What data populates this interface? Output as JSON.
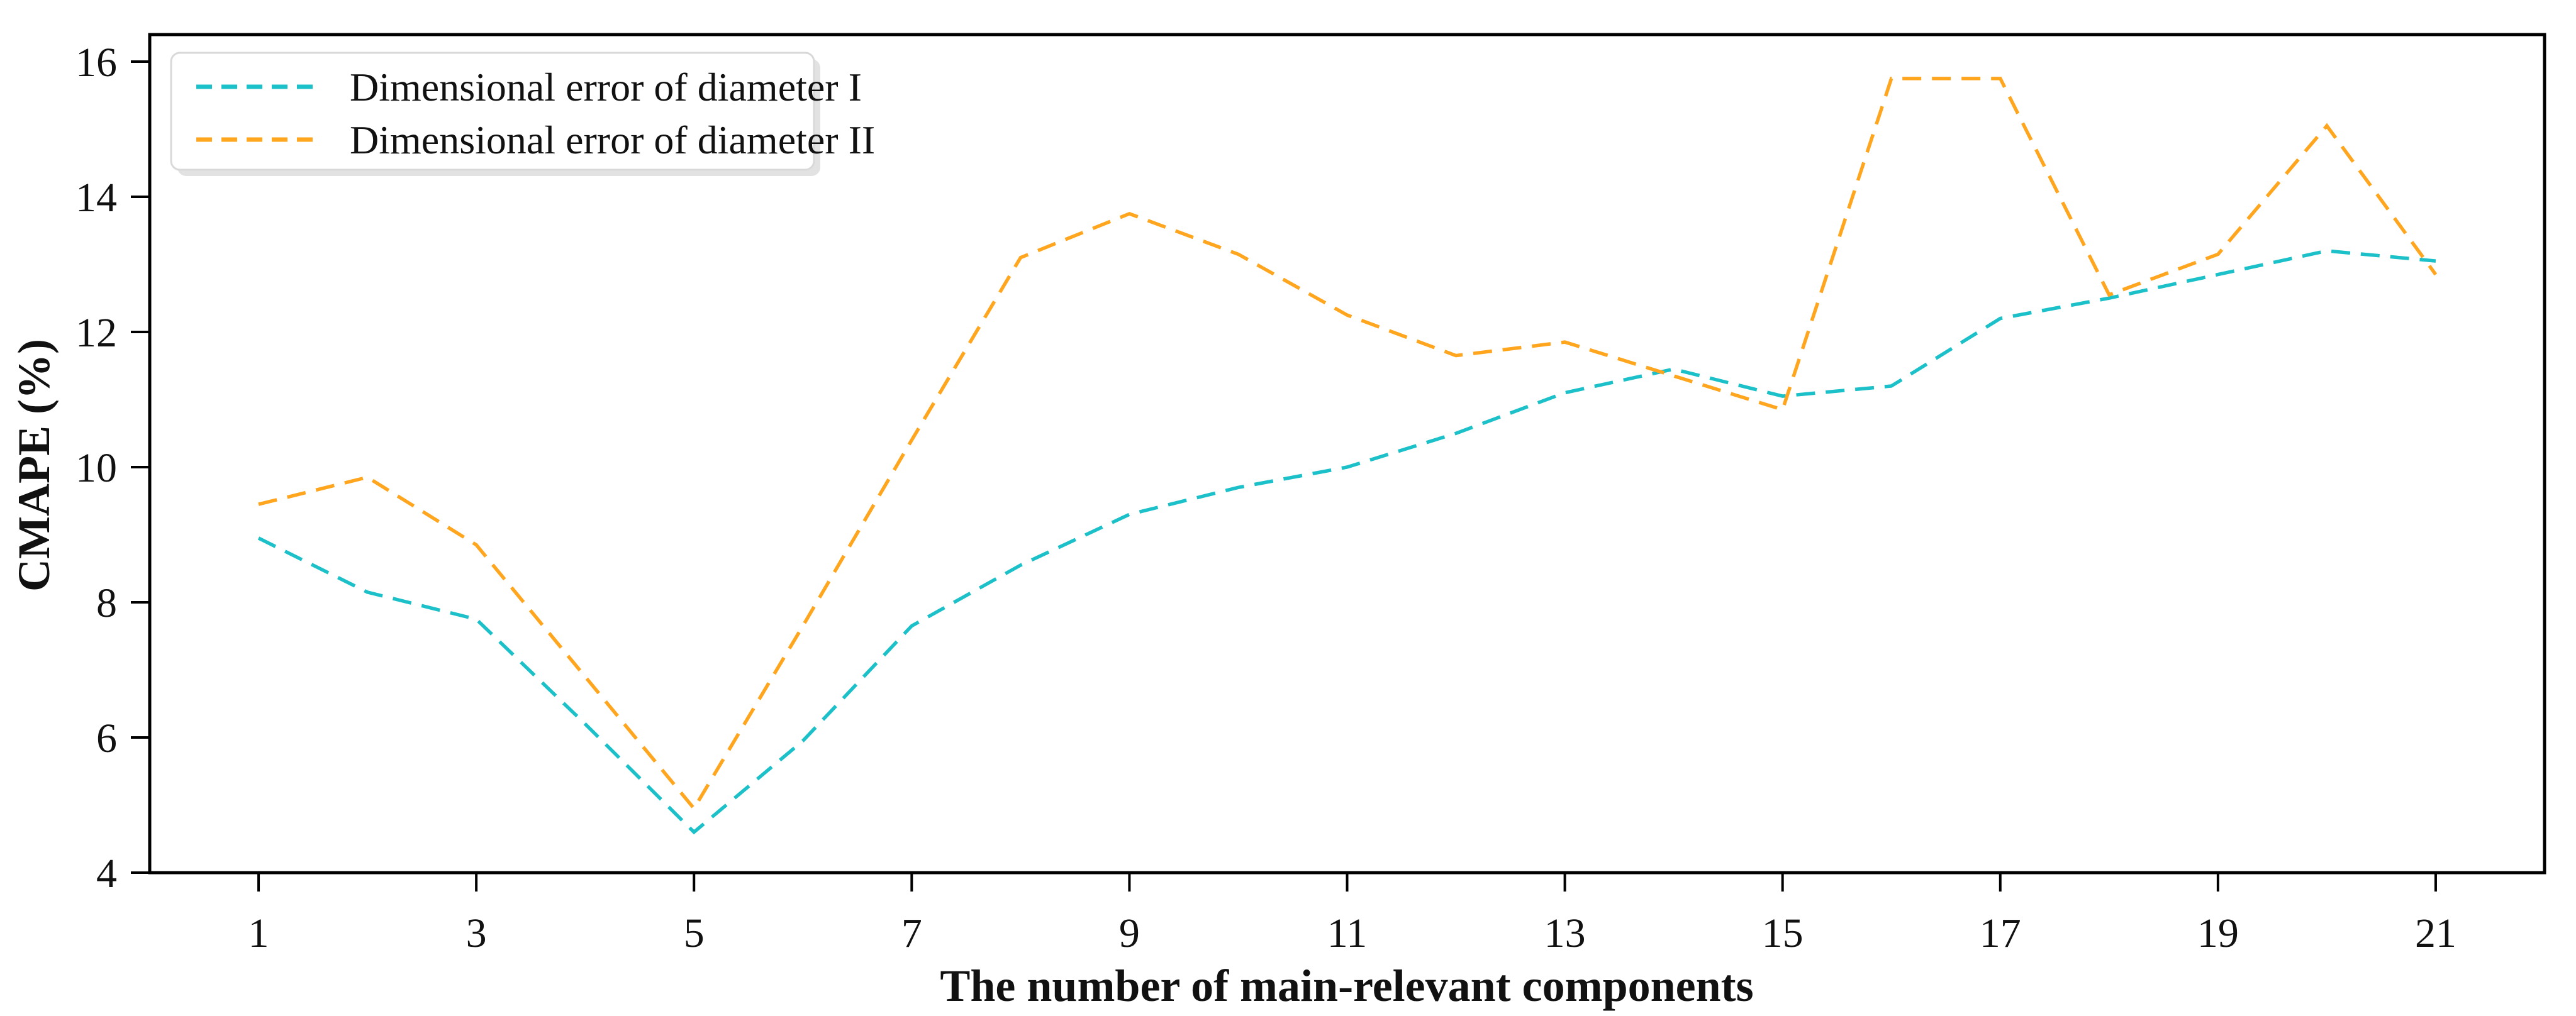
{
  "chart_data": {
    "type": "line",
    "title": "",
    "xlabel": "The number of main-relevant components",
    "ylabel": "CMAPE (%)",
    "x": [
      1,
      2,
      3,
      4,
      5,
      6,
      7,
      8,
      9,
      10,
      11,
      12,
      13,
      14,
      15,
      16,
      17,
      18,
      19,
      20,
      21
    ],
    "series": [
      {
        "name": "Dimensional error of diameter I",
        "color": "#1cc0c9",
        "linestyle": "dashed",
        "values": [
          8.95,
          8.15,
          7.75,
          6.2,
          4.6,
          5.95,
          7.65,
          8.55,
          9.3,
          9.7,
          10.0,
          10.5,
          11.1,
          11.45,
          11.05,
          11.2,
          12.2,
          12.5,
          12.85,
          13.2,
          13.05
        ]
      },
      {
        "name": "Dimensional error of diameter II",
        "color": "#ffa51e",
        "linestyle": "dashed",
        "values": [
          9.45,
          9.85,
          8.85,
          6.9,
          4.95,
          7.65,
          10.4,
          13.1,
          13.75,
          13.15,
          12.25,
          11.65,
          11.85,
          11.35,
          10.85,
          15.75,
          15.75,
          12.55,
          13.15,
          15.05,
          12.85
        ]
      }
    ],
    "xlim": [
      0,
      22
    ],
    "ylim": [
      4,
      16.4
    ],
    "xticks": [
      1,
      3,
      5,
      7,
      9,
      11,
      13,
      15,
      17,
      19,
      21
    ],
    "yticks": [
      4,
      6,
      8,
      10,
      12,
      14,
      16
    ],
    "grid": false,
    "legend_position": "upper-left",
    "frame_color": "#000000",
    "background_color": "#ffffff"
  }
}
